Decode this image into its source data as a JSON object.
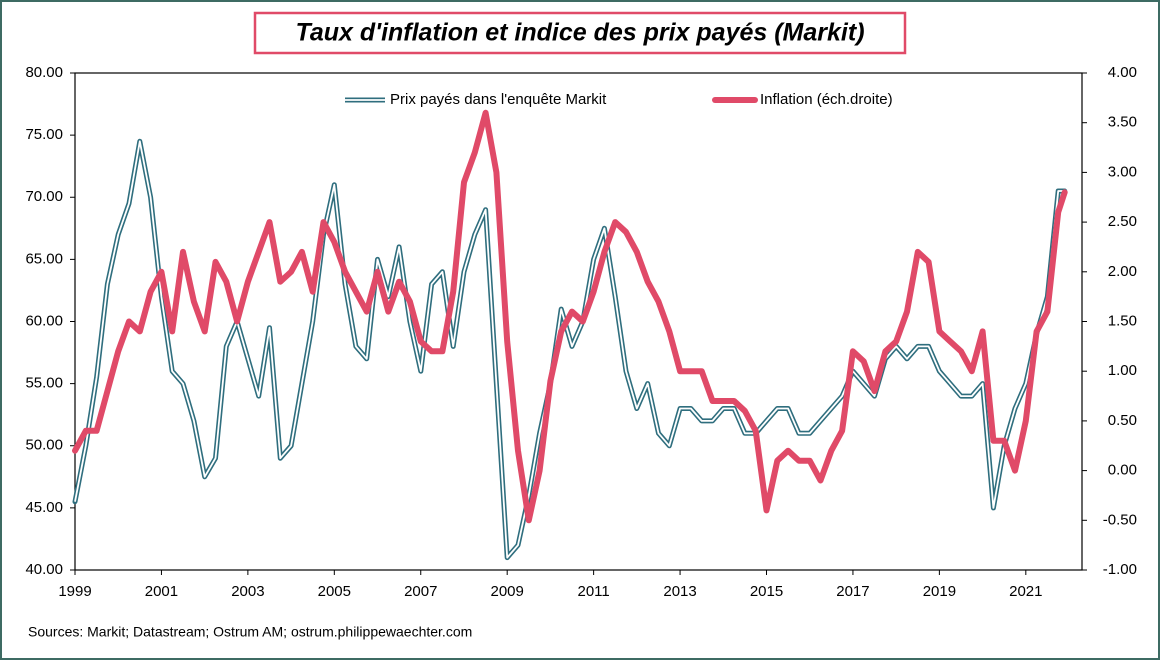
{
  "chart_data": {
    "type": "line",
    "title": "Taux d'inflation et indice des prix payés (Markit)",
    "source": "Sources: Markit; Datastream;  Ostrum  AM; ostrum.philippewaechter.com",
    "legend": "top",
    "x": [
      1999,
      1999.25,
      1999.5,
      1999.75,
      2000,
      2000.25,
      2000.5,
      2000.75,
      2001,
      2001.25,
      2001.5,
      2001.75,
      2002,
      2002.25,
      2002.5,
      2002.75,
      2003,
      2003.25,
      2003.5,
      2003.75,
      2004,
      2004.25,
      2004.5,
      2004.75,
      2005,
      2005.25,
      2005.5,
      2005.75,
      2006,
      2006.25,
      2006.5,
      2006.75,
      2007,
      2007.25,
      2007.5,
      2007.75,
      2008,
      2008.25,
      2008.5,
      2008.75,
      2009,
      2009.25,
      2009.5,
      2009.75,
      2010,
      2010.25,
      2010.5,
      2010.75,
      2011,
      2011.25,
      2011.5,
      2011.75,
      2012,
      2012.25,
      2012.5,
      2012.75,
      2013,
      2013.25,
      2013.5,
      2013.75,
      2014,
      2014.25,
      2014.5,
      2014.75,
      2015,
      2015.25,
      2015.5,
      2015.75,
      2016,
      2016.25,
      2016.5,
      2016.75,
      2017,
      2017.25,
      2017.5,
      2017.75,
      2018,
      2018.25,
      2018.5,
      2018.75,
      2019,
      2019.25,
      2019.5,
      2019.75,
      2020,
      2020.25,
      2020.5,
      2020.75,
      2021,
      2021.25,
      2021.5,
      2021.75,
      2021.9
    ],
    "xlim": [
      1999,
      2022.3
    ],
    "xticks": [
      1999,
      2001,
      2003,
      2005,
      2007,
      2009,
      2011,
      2013,
      2015,
      2017,
      2019,
      2021
    ],
    "ylim": [
      40,
      80
    ],
    "yticks": [
      {
        "value": 40,
        "label": "40.00"
      },
      {
        "value": 45,
        "label": "45.00"
      },
      {
        "value": 50,
        "label": "50.00"
      },
      {
        "value": 55,
        "label": "55.00"
      },
      {
        "value": 60,
        "label": "60.00"
      },
      {
        "value": 65,
        "label": "65.00"
      },
      {
        "value": 70,
        "label": "70.00"
      },
      {
        "value": 75,
        "label": "75.00"
      },
      {
        "value": 80,
        "label": "80.00"
      }
    ],
    "y2lim": [
      -1,
      4
    ],
    "y2ticks": [
      {
        "value": -1,
        "label": "-1.00"
      },
      {
        "value": -0.5,
        "label": "-0.50"
      },
      {
        "value": 0,
        "label": "0.00"
      },
      {
        "value": 0.5,
        "label": "0.50"
      },
      {
        "value": 1,
        "label": "1.00"
      },
      {
        "value": 1.5,
        "label": "1.50"
      },
      {
        "value": 2,
        "label": "2.00"
      },
      {
        "value": 2.5,
        "label": "2.50"
      },
      {
        "value": 3,
        "label": "3.00"
      },
      {
        "value": 3.5,
        "label": "3.50"
      },
      {
        "value": 4,
        "label": "4.00"
      }
    ],
    "series": [
      {
        "name": "Prix payés dans l'enquête Markit",
        "color": "#2f6e7e",
        "values": [
          45.5,
          50,
          55.5,
          63,
          67,
          69.5,
          74.5,
          70,
          62,
          56,
          55,
          52,
          47.5,
          49,
          58,
          60,
          57,
          54,
          59.5,
          49,
          50,
          55,
          60,
          67,
          71,
          63,
          58,
          57,
          65,
          62,
          66,
          60,
          56,
          63,
          64,
          58,
          64,
          67,
          69,
          55,
          41,
          42,
          46,
          51,
          55,
          61,
          58,
          60,
          65,
          67.5,
          62,
          56,
          53,
          55,
          51,
          50,
          53,
          53,
          52,
          52,
          53,
          53,
          51,
          51,
          52,
          53,
          53,
          51,
          51,
          52,
          53,
          54,
          56,
          55,
          54,
          57,
          58,
          57,
          58,
          58,
          56,
          55,
          54,
          54,
          55,
          45,
          50,
          53,
          55,
          59,
          62,
          70.5,
          70.5
        ]
      },
      {
        "name": "Inflation (éch.droite)",
        "color": "#e04a68",
        "axis": "y2",
        "values": [
          0.2,
          0.4,
          0.4,
          0.8,
          1.2,
          1.5,
          1.4,
          1.8,
          2.0,
          1.4,
          2.2,
          1.7,
          1.4,
          2.1,
          1.9,
          1.5,
          1.9,
          2.2,
          2.5,
          1.9,
          2.0,
          2.2,
          1.8,
          2.5,
          2.3,
          2.0,
          1.8,
          1.6,
          2.0,
          1.6,
          1.9,
          1.7,
          1.3,
          1.2,
          1.2,
          1.8,
          2.9,
          3.2,
          3.6,
          3.0,
          1.3,
          0.2,
          -0.5,
          0.0,
          0.9,
          1.4,
          1.6,
          1.5,
          1.8,
          2.2,
          2.5,
          2.4,
          2.2,
          1.9,
          1.7,
          1.4,
          1.0,
          1.0,
          1.0,
          0.7,
          0.7,
          0.7,
          0.6,
          0.4,
          -0.4,
          0.1,
          0.2,
          0.1,
          0.1,
          -0.1,
          0.2,
          0.4,
          1.2,
          1.1,
          0.8,
          1.2,
          1.3,
          1.6,
          2.2,
          2.1,
          1.4,
          1.3,
          1.2,
          1.0,
          1.4,
          0.3,
          0.3,
          0.0,
          0.5,
          1.4,
          1.6,
          2.6,
          2.8
        ]
      }
    ]
  }
}
